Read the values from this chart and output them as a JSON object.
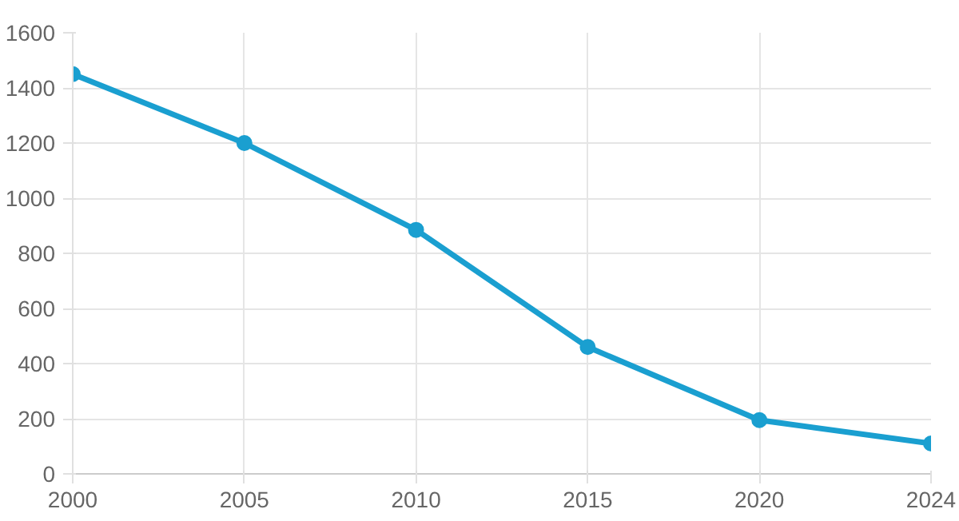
{
  "chart_data": {
    "type": "line",
    "categories": [
      "2000",
      "2005",
      "2010",
      "2015",
      "2020",
      "2024"
    ],
    "series": [
      {
        "color": "#1a9fd0",
        "values": [
          1450,
          1200,
          885,
          460,
          195,
          110
        ]
      }
    ],
    "ylim": [
      0,
      1600
    ],
    "yticks": [
      0,
      200,
      400,
      600,
      800,
      1000,
      1200,
      1400,
      1600
    ],
    "grid": true,
    "marker": "circle",
    "line_style": "solid"
  }
}
